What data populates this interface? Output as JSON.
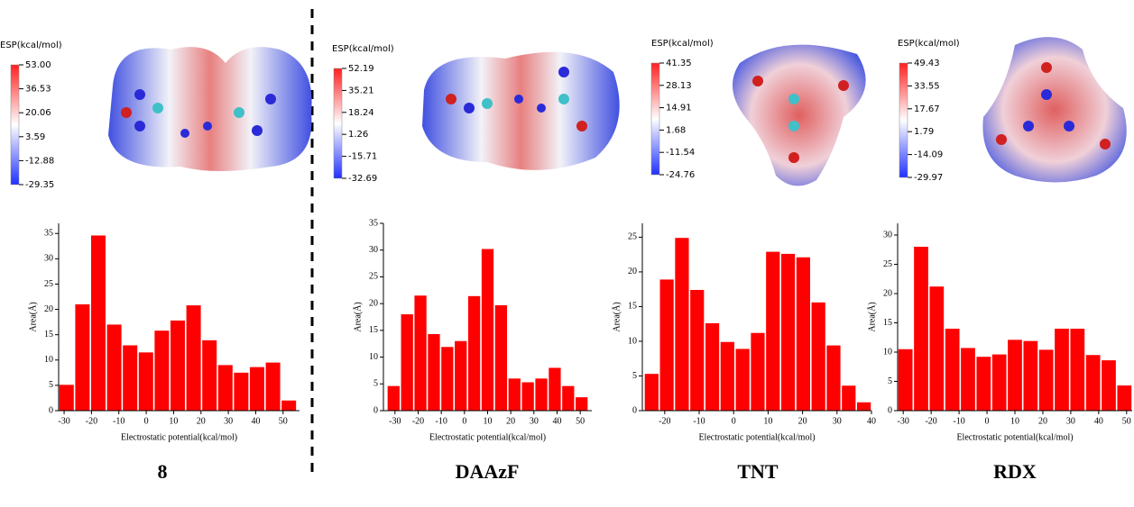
{
  "chart_data": [
    {
      "type": "histogram",
      "label": "8",
      "x_label": "Electrostatic potential(kcal/mol)",
      "y_label": "Area(Å)",
      "color": "#ff0000",
      "bins": [
        -32,
        -26.2,
        -20.4,
        -14.6,
        -8.8,
        -3,
        2.8,
        8.6,
        14.4,
        20.2,
        26,
        31.8,
        37.6,
        43.4,
        49.2,
        55
      ],
      "values": [
        5.1,
        21,
        34.6,
        17,
        12.9,
        11.5,
        15.8,
        17.8,
        20.8,
        13.9,
        9,
        7.5,
        8.6,
        9.5,
        2
      ],
      "xlim": [
        -32,
        56
      ],
      "xticks": [
        -30,
        -20,
        -10,
        0,
        10,
        20,
        30,
        40,
        50
      ],
      "ylim": [
        0,
        37
      ],
      "yticks": [
        0,
        5,
        10,
        15,
        20,
        25,
        30,
        35
      ],
      "colorbar": {
        "title": "ESP(kcal/mol)",
        "clim": [
          -29.35,
          53
        ],
        "ticks": [
          {
            "value": 53,
            "label": "53.00"
          },
          36.53,
          20.06,
          3.59,
          -12.88,
          -29.35
        ]
      }
    },
    {
      "type": "histogram",
      "label": "DAAzF",
      "x_label": "Electrostatic potential(kcal/mol)",
      "y_label": "Area(Å)",
      "color": "#ff0000",
      "bins": [
        -33.5,
        -27.7,
        -21.9,
        -16.1,
        -10.3,
        -4.5,
        1.3,
        7.1,
        12.9,
        18.7,
        24.5,
        30.3,
        36.1,
        41.9,
        47.7,
        53.5
      ],
      "values": [
        4.6,
        18,
        21.5,
        14.3,
        11.9,
        13,
        21.4,
        30.2,
        19.7,
        6,
        5.3,
        6,
        8,
        4.6,
        2.5
      ],
      "xlim": [
        -35,
        55
      ],
      "xticks": [
        -30,
        -20,
        -10,
        0,
        10,
        20,
        30,
        40,
        50
      ],
      "ylim": [
        0,
        35
      ],
      "yticks": [
        0,
        5,
        10,
        15,
        20,
        25,
        30,
        35
      ],
      "colorbar": {
        "title": "ESP(kcal/mol)",
        "clim": [
          -32.69,
          52.19
        ],
        "ticks": [
          52.19,
          35.21,
          18.24,
          1.26,
          -15.71,
          -32.69
        ]
      }
    },
    {
      "type": "histogram",
      "label": "TNT",
      "x_label": "Electrostatic potential(kcal/mol)",
      "y_label": "Area(Å)",
      "color": "#ff0000",
      "bins": [
        -26,
        -21.6,
        -17.2,
        -12.8,
        -8.4,
        -4,
        0.4,
        4.8,
        9.2,
        13.6,
        18,
        22.4,
        26.8,
        31.2,
        35.6,
        40
      ],
      "values": [
        5.3,
        18.9,
        24.9,
        17.4,
        12.6,
        9.9,
        8.9,
        11.2,
        22.9,
        22.6,
        22.1,
        15.6,
        9.4,
        3.6,
        1.2
      ],
      "xlim": [
        -26.5,
        40
      ],
      "xticks": [
        -20,
        -10,
        0,
        10,
        20,
        30,
        40
      ],
      "ylim": [
        0,
        27
      ],
      "yticks": [
        0,
        5,
        10,
        15,
        20,
        25
      ],
      "colorbar": {
        "title": "ESP(kcal/mol)",
        "clim": [
          -24.76,
          41.35
        ],
        "ticks": [
          41.35,
          28.13,
          14.91,
          1.68,
          -11.54,
          -24.76
        ]
      }
    },
    {
      "type": "histogram",
      "label": "RDX",
      "x_label": "Electrostatic potential(kcal/mol)",
      "y_label": "Area(Å)",
      "color": "#ff0000",
      "bins": [
        -32,
        -26.4,
        -20.8,
        -15.2,
        -9.6,
        -4,
        1.6,
        7.2,
        12.8,
        18.4,
        24,
        29.6,
        35.2,
        40.8,
        46.4,
        52
      ],
      "values": [
        10.5,
        28,
        21.2,
        14,
        10.7,
        9.2,
        9.6,
        12.1,
        11.9,
        10.4,
        14,
        14,
        9.5,
        8.6,
        4.3
      ],
      "xlim": [
        -32,
        52
      ],
      "xticks": [
        -30,
        -20,
        -10,
        0,
        10,
        20,
        30,
        40,
        50
      ],
      "ylim": [
        0,
        32
      ],
      "yticks": [
        0,
        5,
        10,
        15,
        20,
        25,
        30
      ],
      "colorbar": {
        "title": "ESP(kcal/mol)",
        "clim": [
          -29.97,
          49.43
        ],
        "ticks": [
          49.43,
          33.55,
          17.67,
          1.79,
          -14.09,
          -29.97
        ]
      }
    }
  ]
}
